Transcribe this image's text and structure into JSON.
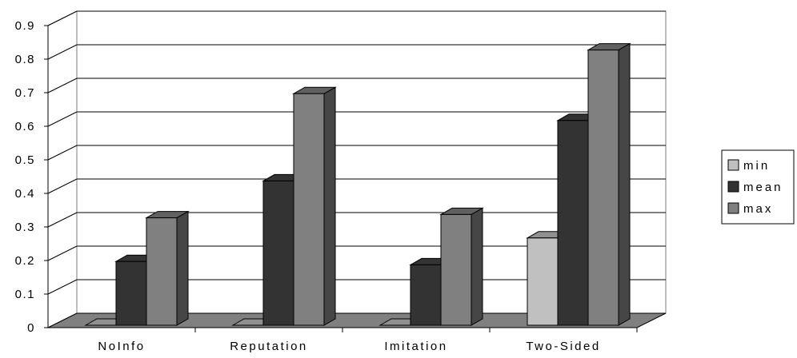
{
  "chart_data": {
    "type": "bar",
    "style": "3d-clustered-column",
    "categories": [
      "NoInfo",
      "Reputation",
      "Imitation",
      "Two-Sided"
    ],
    "series": [
      {
        "name": "min",
        "values": [
          0,
          0,
          0,
          0.26
        ],
        "color": "#c0c0c0"
      },
      {
        "name": "mean",
        "values": [
          0.19,
          0.43,
          0.18,
          0.61
        ],
        "color": "#333333"
      },
      {
        "name": "max",
        "values": [
          0.32,
          0.69,
          0.33,
          0.82
        ],
        "color": "#808080"
      }
    ],
    "ylim": [
      0,
      0.9
    ],
    "yticks": [
      "0",
      "0.1",
      "0.2",
      "0.3",
      "0.4",
      "0.5",
      "0.6",
      "0.7",
      "0.8",
      "0.9"
    ],
    "grid": true,
    "legend_position": "right",
    "title": "",
    "xlabel": "",
    "ylabel": ""
  }
}
